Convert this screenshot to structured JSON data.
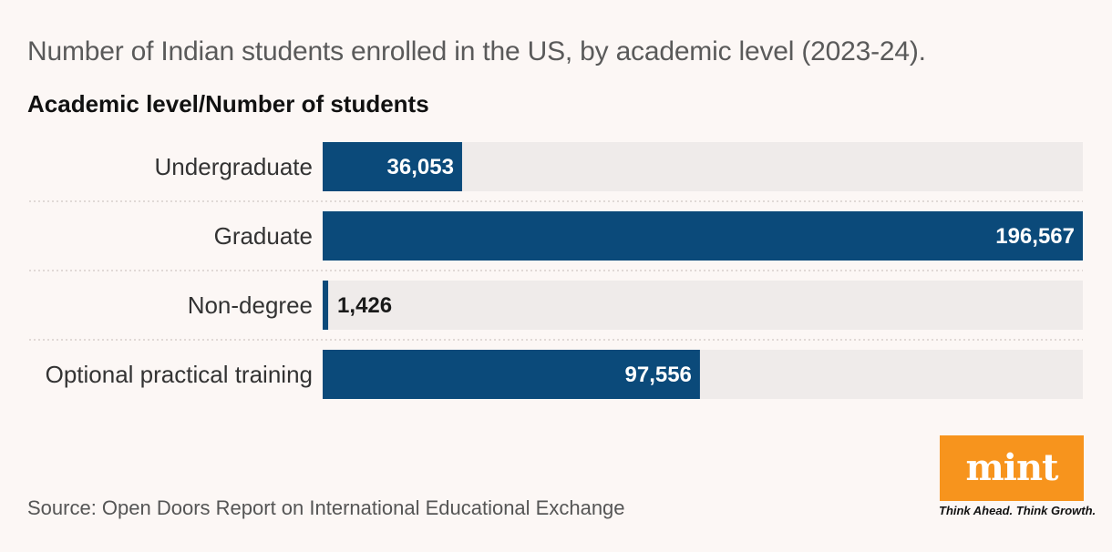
{
  "header": {
    "title": "Number of Indian students enrolled in the US, by academic level (2023-24).",
    "subtitle": "Academic level/Number of students"
  },
  "footer": {
    "source": "Source: Open Doors Report on International Educational Exchange"
  },
  "brand": {
    "logo": "mint",
    "tagline": "Think Ahead. Think Growth.",
    "color": "#f7941d"
  },
  "colors": {
    "bar": "#0b4a7a",
    "track": "#efebea",
    "background": "#fcf7f5"
  },
  "chart_data": {
    "type": "bar",
    "orientation": "horizontal",
    "categories": [
      "Undergraduate",
      "Graduate",
      "Non-degree",
      "Optional practical training"
    ],
    "values": [
      36053,
      196567,
      1426,
      97556
    ],
    "value_labels": [
      "36,053",
      "196,567",
      "1,426",
      "97,556"
    ],
    "xlim": [
      0,
      196567
    ],
    "grid": false,
    "legend": "none"
  }
}
